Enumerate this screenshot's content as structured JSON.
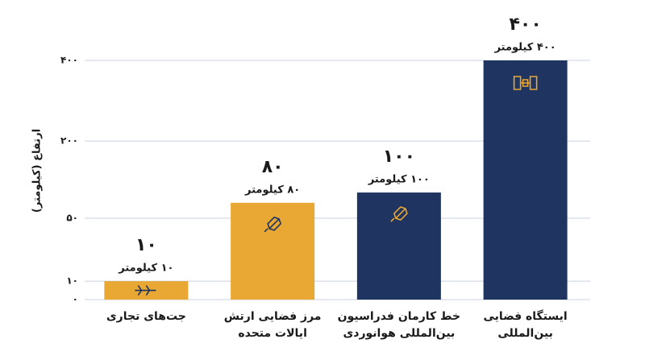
{
  "chart_data": {
    "type": "bar",
    "y_label": "ارتفاع (کیلومتر)",
    "categories": [
      "جت‌های تجاری",
      "مرز فضایی ارتش\nایالات متحده",
      "خط کارمان فدراسیون\nبین‌المللی هوانوردی",
      "ایستگاه فضایی\nبین‌المللی"
    ],
    "values": [
      10,
      80,
      100,
      400
    ],
    "value_labels": [
      "۱۰",
      "۸۰",
      "۱۰۰",
      "۴۰۰"
    ],
    "value_captions": [
      "۱۰ کیلومتر",
      "۸۰ کیلومتر",
      "۱۰۰ کیلومتر",
      "۴۰۰ کیلومتر"
    ],
    "colors": [
      "#e9a733",
      "#e9a733",
      "#1f3461",
      "#1f3461"
    ],
    "ylim": [
      0,
      400
    ],
    "yticks": [
      {
        "value": 0,
        "label": "۰"
      },
      {
        "value": 10,
        "label": "۱۰"
      },
      {
        "value": 50,
        "label": "۵۰"
      },
      {
        "value": 200,
        "label": "۲۰۰"
      },
      {
        "value": 400,
        "label": "۴۰۰"
      }
    ],
    "grid": true
  }
}
